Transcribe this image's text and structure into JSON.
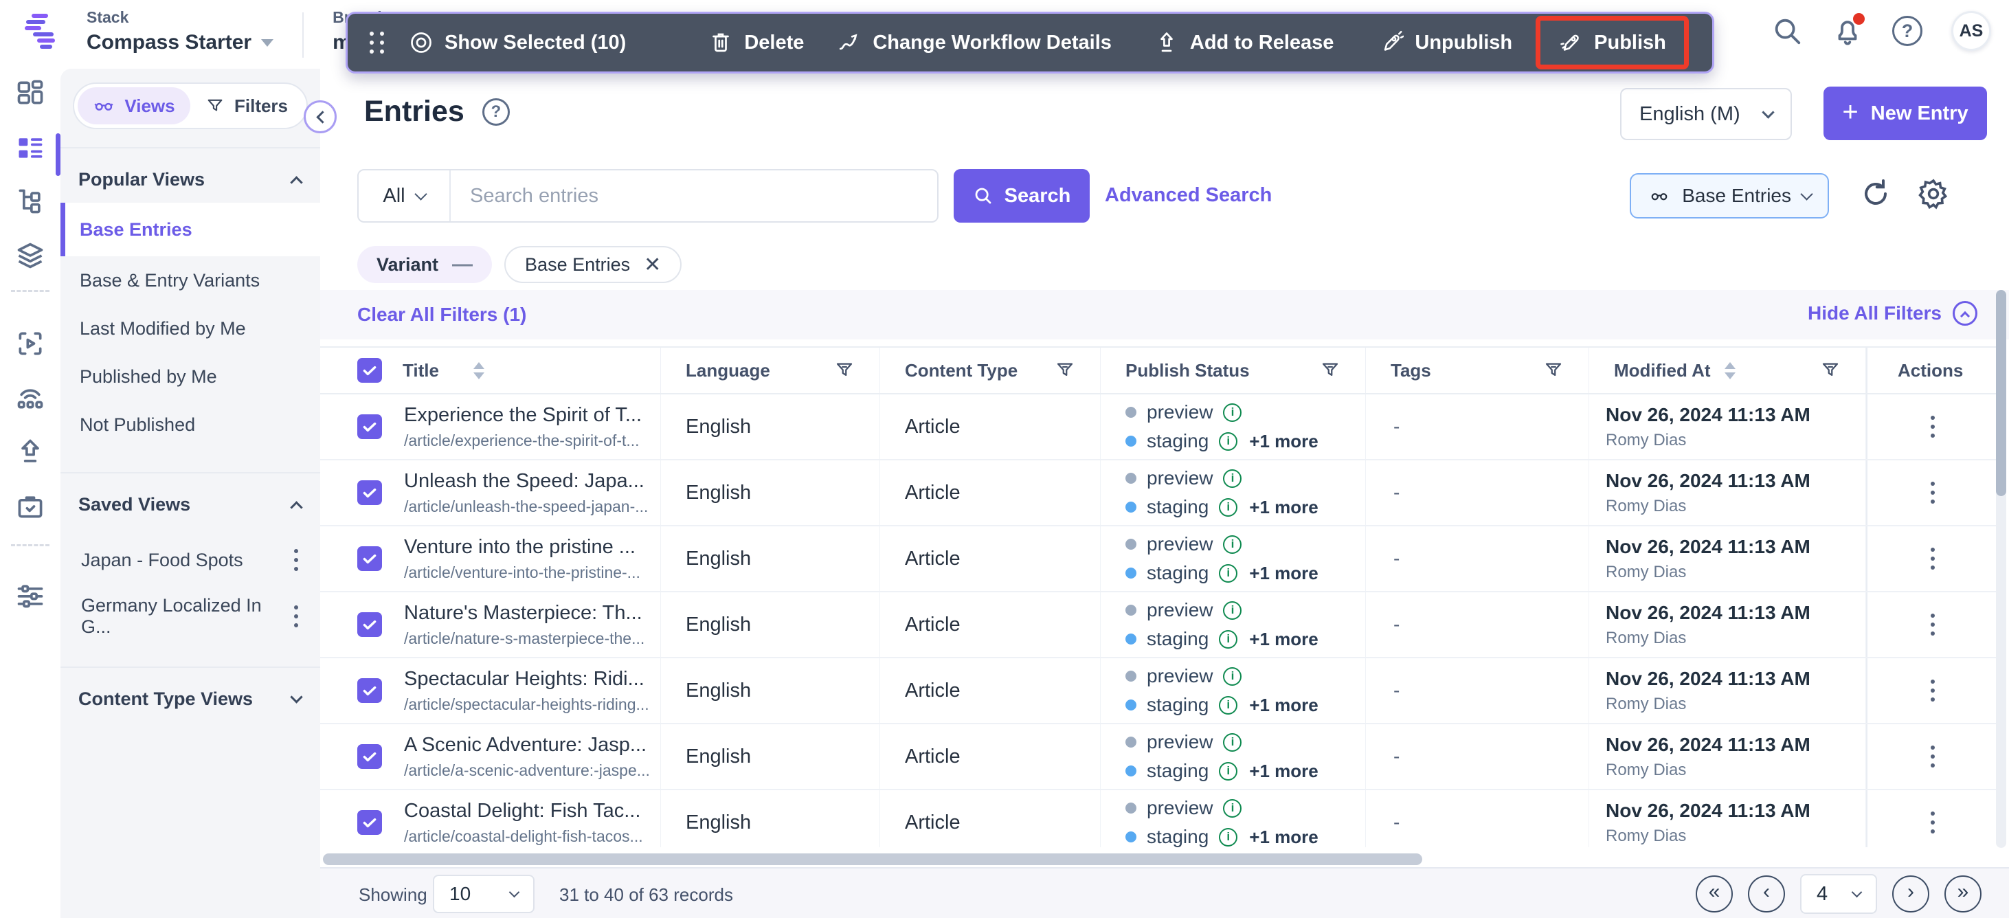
{
  "colors": {
    "accent": "#6C5CE7",
    "toolbar_bg": "#4A5362",
    "annotation_red": "#EE3B2A",
    "preview_dot": "#9DACC0",
    "staging_dot": "#57A9F1",
    "info_green": "#0F8A50"
  },
  "topbar": {
    "stack_label": "Stack",
    "stack_name": "Compass Starter",
    "branch_label": "Branch",
    "branch_name": "main",
    "avatar_initials": "AS"
  },
  "bulk_toolbar": {
    "show_selected": "Show Selected (10)",
    "delete": "Delete",
    "change_workflow": "Change Workflow Details",
    "add_to_release": "Add to Release",
    "unpublish": "Unpublish",
    "publish": "Publish"
  },
  "views_panel": {
    "tabs": {
      "views": "Views",
      "filters": "Filters"
    },
    "popular": {
      "title": "Popular Views",
      "items": [
        "Base Entries",
        "Base & Entry Variants",
        "Last Modified by Me",
        "Published by Me",
        "Not Published"
      ],
      "active": "Base Entries"
    },
    "saved": {
      "title": "Saved Views",
      "items": [
        "Japan - Food Spots",
        "Germany Localized In G..."
      ]
    },
    "content_type": {
      "title": "Content Type Views"
    }
  },
  "page": {
    "title": "Entries",
    "language_selector": "English (M)",
    "new_entry_label": "New Entry"
  },
  "search": {
    "scope": "All",
    "placeholder": "Search entries",
    "button_label": "Search",
    "advanced_label": "Advanced Search",
    "view_selector": "Base Entries"
  },
  "filter_bar": {
    "chips": [
      {
        "label": "Variant"
      },
      {
        "label": "Base Entries"
      }
    ],
    "clear_label": "Clear All Filters (1)",
    "hide_label": "Hide All Filters"
  },
  "table": {
    "columns": [
      "Title",
      "Language",
      "Content Type",
      "Publish Status",
      "Tags",
      "Modified At",
      "Actions"
    ],
    "rows": [
      {
        "title": "Experience the Spirit of T...",
        "url": "/article/experience-the-spirit-of-t...",
        "language": "English",
        "content_type": "Article",
        "environments": [
          {
            "name": "preview"
          },
          {
            "name": "staging"
          }
        ],
        "more_label": "+1 more",
        "tags": "-",
        "modified_at": "Nov 26, 2024 11:13 AM",
        "modified_by": "Romy Dias"
      },
      {
        "title": "Unleash the Speed: Japa...",
        "url": "/article/unleash-the-speed-japan-...",
        "language": "English",
        "content_type": "Article",
        "environments": [
          {
            "name": "preview"
          },
          {
            "name": "staging"
          }
        ],
        "more_label": "+1 more",
        "tags": "-",
        "modified_at": "Nov 26, 2024 11:13 AM",
        "modified_by": "Romy Dias"
      },
      {
        "title": "Venture into the pristine ...",
        "url": "/article/venture-into-the-pristine-...",
        "language": "English",
        "content_type": "Article",
        "environments": [
          {
            "name": "preview"
          },
          {
            "name": "staging"
          }
        ],
        "more_label": "+1 more",
        "tags": "-",
        "modified_at": "Nov 26, 2024 11:13 AM",
        "modified_by": "Romy Dias"
      },
      {
        "title": "Nature's Masterpiece: Th...",
        "url": "/article/nature-s-masterpiece-the...",
        "language": "English",
        "content_type": "Article",
        "environments": [
          {
            "name": "preview"
          },
          {
            "name": "staging"
          }
        ],
        "more_label": "+1 more",
        "tags": "-",
        "modified_at": "Nov 26, 2024 11:13 AM",
        "modified_by": "Romy Dias"
      },
      {
        "title": "Spectacular Heights: Ridi...",
        "url": "/article/spectacular-heights-riding...",
        "language": "English",
        "content_type": "Article",
        "environments": [
          {
            "name": "preview"
          },
          {
            "name": "staging"
          }
        ],
        "more_label": "+1 more",
        "tags": "-",
        "modified_at": "Nov 26, 2024 11:13 AM",
        "modified_by": "Romy Dias"
      },
      {
        "title": "A Scenic Adventure: Jasp...",
        "url": "/article/a-scenic-adventure:-jaspe...",
        "language": "English",
        "content_type": "Article",
        "environments": [
          {
            "name": "preview"
          },
          {
            "name": "staging"
          }
        ],
        "more_label": "+1 more",
        "tags": "-",
        "modified_at": "Nov 26, 2024 11:13 AM",
        "modified_by": "Romy Dias"
      },
      {
        "title": "Coastal Delight: Fish Tac...",
        "url": "/article/coastal-delight-fish-tacos...",
        "language": "English",
        "content_type": "Article",
        "environments": [
          {
            "name": "preview"
          },
          {
            "name": "staging"
          }
        ],
        "more_label": "+1 more",
        "tags": "-",
        "modified_at": "Nov 26, 2024 11:13 AM",
        "modified_by": "Romy Dias"
      }
    ]
  },
  "pagination": {
    "showing_label": "Showing",
    "page_size": "10",
    "records_text": "31 to 40 of 63 records",
    "current_page": "4"
  }
}
